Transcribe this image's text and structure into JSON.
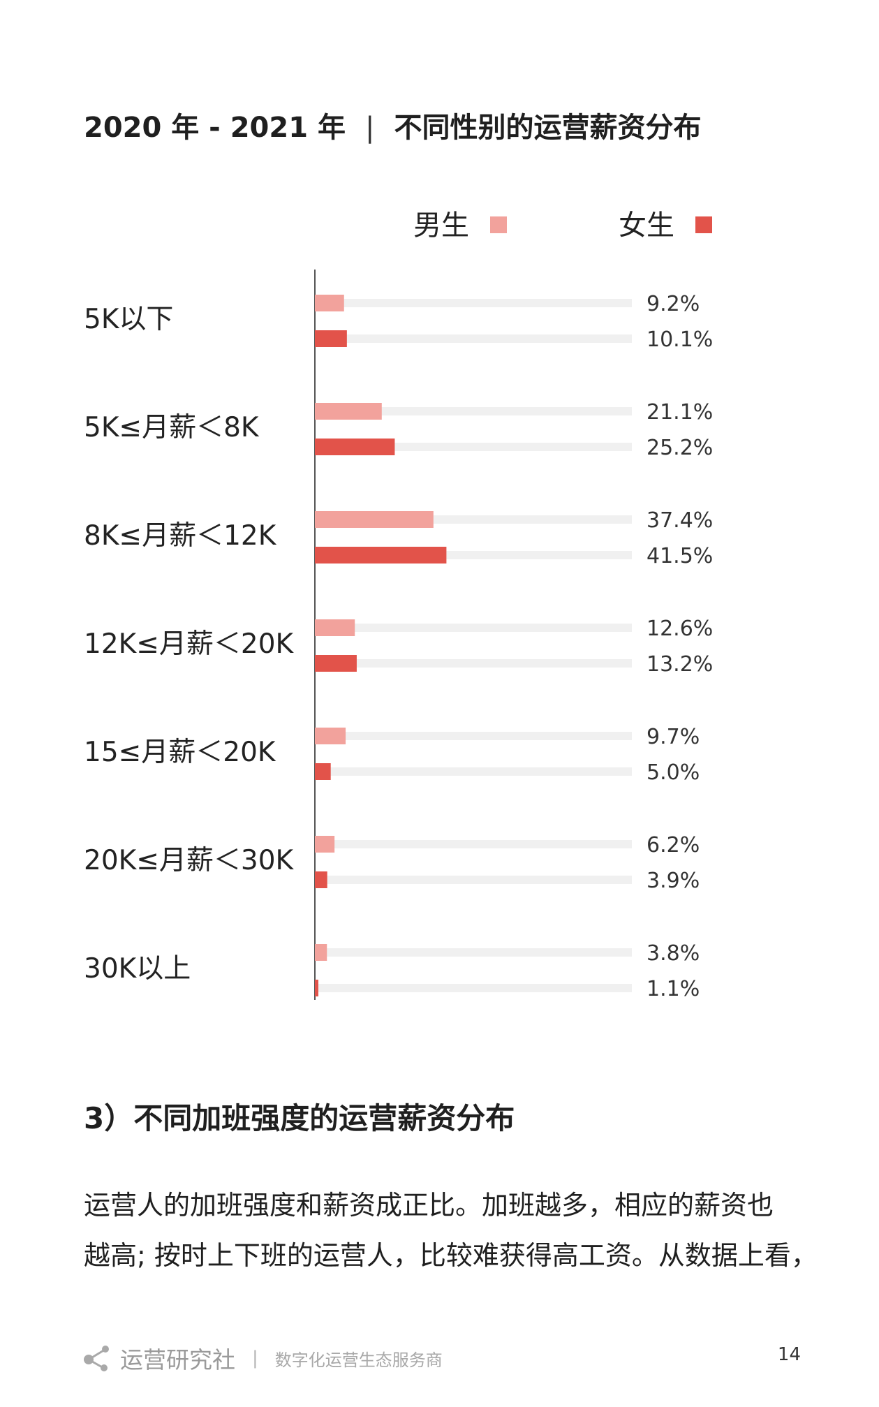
{
  "title": {
    "period": "2020 年 - 2021 年",
    "separator": "|",
    "subject": "不同性别的运营薪资分布"
  },
  "colors": {
    "male": "#f2a29c",
    "female": "#e2534a",
    "track": "#f0f0f0",
    "axis": "#555555"
  },
  "chart_data": {
    "type": "bar",
    "orientation": "horizontal",
    "categories": [
      "5K以下",
      "5K≤月薪＜8K",
      "8K≤月薪＜12K",
      "12K≤月薪＜20K",
      "15≤月薪＜20K",
      "20K≤月薪＜30K",
      "30K以上"
    ],
    "series": [
      {
        "name": "男生",
        "values": [
          9.2,
          21.1,
          37.4,
          12.6,
          9.7,
          6.2,
          3.8
        ],
        "labels": [
          "9.2%",
          "21.1%",
          "37.4%",
          "12.6%",
          "9.7%",
          "6.2%",
          "3.8%"
        ]
      },
      {
        "name": "女生",
        "values": [
          10.1,
          25.2,
          41.5,
          13.2,
          5.0,
          3.9,
          1.1
        ],
        "labels": [
          "10.1%",
          "25.2%",
          "41.5%",
          "13.2%",
          "5.0%",
          "3.9%",
          "1.1%"
        ]
      }
    ],
    "unit": "%",
    "xlim": [
      0,
      100
    ],
    "legend_position": "top-right",
    "grid": false
  },
  "section": {
    "heading": "3）不同加班强度的运营薪资分布",
    "paragraph_lines": [
      "运营人的加班强度和薪资成正比。加班越多，相应的薪资也",
      "越高; 按时上下班的运营人，比较难获得高工资。从数据上看，"
    ]
  },
  "footer": {
    "brand": "运营研究社",
    "divider": "|",
    "tagline": "数字化运营生态服务商",
    "page_number": "14"
  }
}
